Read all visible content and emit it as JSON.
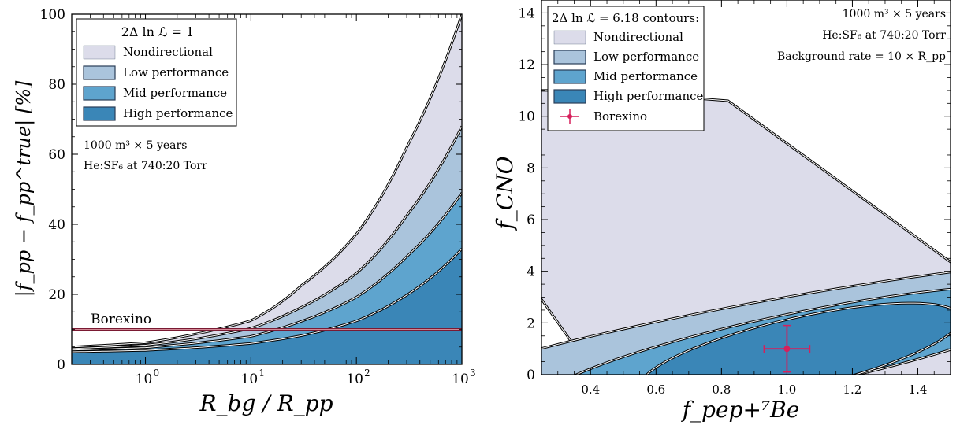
{
  "chart_data": [
    {
      "type": "area",
      "xscale": "log",
      "xlim": [
        0.2,
        1000
      ],
      "ylim": [
        0,
        100
      ],
      "xticks": [
        {
          "value": 1,
          "label": "10",
          "exp": "0"
        },
        {
          "value": 10,
          "label": "10",
          "exp": "1"
        },
        {
          "value": 100,
          "label": "10",
          "exp": "2"
        },
        {
          "value": 1000,
          "label": "10",
          "exp": "3"
        }
      ],
      "yticks": [
        "0",
        "20",
        "40",
        "60",
        "80",
        "100"
      ],
      "xlabel": "R_bg / R_pp",
      "ylabel": "|f_pp − f_pp^true| [%]",
      "legend_title": "2Δ ln ℒ = 1",
      "legend_placement": "upper-left",
      "annotation_lines": [
        "1000 m³ × 5 years",
        "He:SF₆ at 740:20 Torr"
      ],
      "x": [
        0.2,
        1,
        3,
        10,
        30,
        100,
        300,
        1000
      ],
      "series": [
        {
          "name": "Nondirectional",
          "color": "#dcdcea",
          "values": [
            5.0,
            6.2,
            8.7,
            12.5,
            22.5,
            37.2,
            62.0,
            100.0
          ]
        },
        {
          "name": "Low performance",
          "color": "#aac4dc",
          "values": [
            4.5,
            5.5,
            7.3,
            10.3,
            16.3,
            26.0,
            42.5,
            68.0
          ]
        },
        {
          "name": "Mid performance",
          "color": "#5ea4ce",
          "values": [
            4.1,
            4.8,
            6.1,
            8.0,
            12.3,
            19.2,
            30.8,
            49.0
          ]
        },
        {
          "name": "High performance",
          "color": "#3a86b7",
          "values": [
            3.6,
            4.0,
            4.8,
            6.0,
            8.2,
            12.4,
            19.8,
            33.0
          ]
        }
      ],
      "reference_line": {
        "label": "Borexino",
        "value": 10,
        "color": "#7a1a33"
      }
    },
    {
      "type": "contour",
      "xlim": [
        0.25,
        1.5
      ],
      "ylim": [
        0,
        14.5
      ],
      "xticks": [
        "0.4",
        "0.6",
        "0.8",
        "1.0",
        "1.2",
        "1.4"
      ],
      "yticks": [
        "0",
        "2",
        "4",
        "6",
        "8",
        "10",
        "12",
        "14"
      ],
      "xlabel": "f_pep+⁷Be",
      "ylabel": "f_CNO",
      "legend_title": "2Δ ln ℒ = 6.18 contours:",
      "legend_placement": "upper-left",
      "annotation_lines": [
        "1000 m³ × 5 years",
        "He:SF₆ at 740:20 Torr",
        "Background rate = 10 × R_pp"
      ],
      "series": [
        {
          "name": "Nondirectional",
          "color": "#dcdcea"
        },
        {
          "name": "Low performance",
          "color": "#aac4dc"
        },
        {
          "name": "Mid performance",
          "color": "#5ea4ce"
        },
        {
          "name": "High performance",
          "color": "#3a86b7"
        }
      ],
      "marker": {
        "name": "Borexino",
        "color": "#d61f5b",
        "x": 1.0,
        "y": 1.0,
        "xerr": 0.07,
        "yerr": 0.9
      }
    }
  ]
}
